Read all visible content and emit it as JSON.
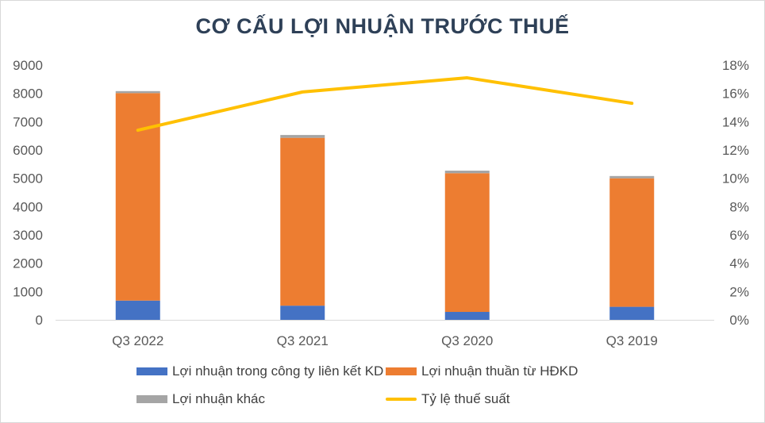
{
  "title": "CƠ CẤU LỢI NHUẬN TRƯỚC THUẾ",
  "colors": {
    "lien_ket": "#4472c4",
    "hdkd": "#ed7d31",
    "khac": "#a5a5a5",
    "ty_le": "#ffc000",
    "axis_text": "#595959"
  },
  "legend": {
    "lien_ket": "Lợi nhuận trong công ty liên kết KD",
    "hdkd": "Lợi nhuận thuần từ HĐKD",
    "khac": "Lợi nhuận khác",
    "ty_le": "Tỷ lệ thuế suất"
  },
  "chart_data": {
    "type": "bar",
    "stacked": true,
    "categories": [
      "Q3 2022",
      "Q3 2021",
      "Q3 2020",
      "Q3 2019"
    ],
    "series": [
      {
        "name": "Lợi nhuận trong công ty liên kết KD",
        "key": "lien_ket",
        "axis": "left",
        "values": [
          680,
          500,
          280,
          460
        ]
      },
      {
        "name": "Lợi nhuận thuần từ HĐKD",
        "key": "hdkd",
        "axis": "left",
        "values": [
          7330,
          5930,
          4900,
          4540
        ]
      },
      {
        "name": "Lợi nhuận khác",
        "key": "khac",
        "axis": "left",
        "values": [
          70,
          100,
          90,
          80
        ]
      },
      {
        "name": "Tỷ lệ thuế suất",
        "key": "ty_le",
        "axis": "right",
        "type": "line",
        "values": [
          13.4,
          16.1,
          17.1,
          15.3
        ],
        "unit": "%"
      }
    ],
    "y_left": {
      "ylim": [
        0,
        9000
      ],
      "ticks": [
        "0",
        "1000",
        "2000",
        "3000",
        "4000",
        "5000",
        "6000",
        "7000",
        "8000",
        "9000"
      ]
    },
    "y_right": {
      "ylim": [
        0,
        18
      ],
      "ticks": [
        "0%",
        "2%",
        "4%",
        "6%",
        "8%",
        "10%",
        "12%",
        "14%",
        "16%",
        "18%"
      ]
    },
    "grid": false,
    "legend_position": "bottom"
  }
}
